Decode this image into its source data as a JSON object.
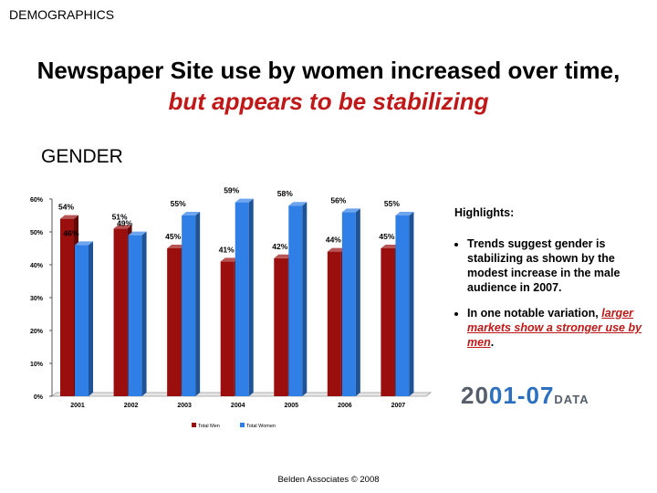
{
  "slide": {
    "section_label": "DEMOGRAPHICS",
    "headline_plain": "Newspaper Site use by women increased over time,",
    "headline_accent": "but appears to be stabilizing",
    "chart_heading": "GENDER",
    "footer": "Belden Associates © 2008"
  },
  "highlights": {
    "title": "Highlights:",
    "bullet1": "Trends suggest gender is stabilizing as shown by the modest increase in the male audience in 2007.",
    "bullet2_prefix": "In one notable variation,",
    "bullet2_emphasis": "larger markets show a stronger use by men",
    "bullet2_suffix": "."
  },
  "badge": {
    "part1": "20",
    "part2": "01-07",
    "part3": "DATA"
  },
  "colors": {
    "men": "#9a0e0e",
    "women": "#2f7fe6",
    "accent": "#c01818"
  },
  "chart_data": {
    "type": "bar",
    "categories": [
      "2001",
      "2002",
      "2003",
      "2004",
      "2005",
      "2006",
      "2007"
    ],
    "series": [
      {
        "name": "Total Men",
        "values": [
          54,
          51,
          45,
          41,
          42,
          44,
          45
        ]
      },
      {
        "name": "Total Women",
        "values": [
          46,
          49,
          55,
          59,
          58,
          56,
          55
        ]
      }
    ],
    "data_labels": {
      "men": [
        "54%",
        "51%",
        "45%",
        "41%",
        "42%",
        "44%",
        "45%"
      ],
      "women": [
        "46%",
        "49%",
        "55%",
        "59%",
        "58%",
        "56%",
        "55%"
      ]
    },
    "ylim": [
      0,
      60
    ],
    "yticks": [
      "0%",
      "10%",
      "20%",
      "30%",
      "40%",
      "50%",
      "60%"
    ],
    "xlabel": "",
    "ylabel": "",
    "legend_position": "bottom-center",
    "grid": false,
    "style": "3d"
  }
}
